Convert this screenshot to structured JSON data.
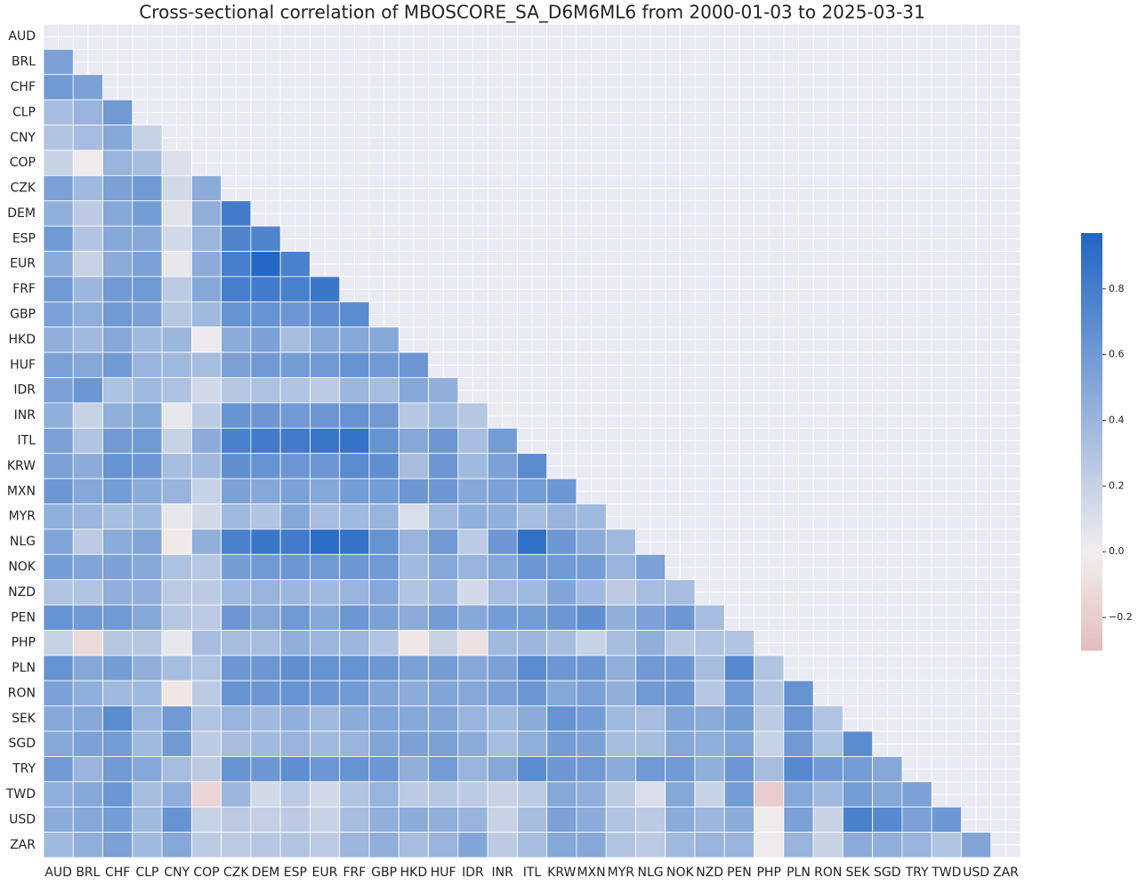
{
  "chart_data": {
    "type": "heatmap",
    "title": "Cross-sectional correlation of MBOSCORE_SA_D6M6ML6 from 2000-01-03 to 2025-03-31",
    "categories": [
      "AUD",
      "BRL",
      "CHF",
      "CLP",
      "CNY",
      "COP",
      "CZK",
      "DEM",
      "ESP",
      "EUR",
      "FRF",
      "GBP",
      "HKD",
      "HUF",
      "IDR",
      "INR",
      "ITL",
      "KRW",
      "MXN",
      "MYR",
      "NLG",
      "NOK",
      "NZD",
      "PEN",
      "PHP",
      "PLN",
      "RON",
      "SEK",
      "SGD",
      "TRY",
      "TWD",
      "USD",
      "ZAR"
    ],
    "values": [
      [],
      [
        0.55
      ],
      [
        0.6,
        0.55
      ],
      [
        0.35,
        0.42,
        0.6
      ],
      [
        0.3,
        0.35,
        0.5,
        0.2
      ],
      [
        0.2,
        0.02,
        0.42,
        0.35,
        0.1
      ],
      [
        0.55,
        0.38,
        0.55,
        0.6,
        0.15,
        0.48
      ],
      [
        0.45,
        0.25,
        0.5,
        0.58,
        0.08,
        0.45,
        0.82
      ],
      [
        0.6,
        0.3,
        0.5,
        0.5,
        0.15,
        0.4,
        0.75,
        0.75
      ],
      [
        0.48,
        0.2,
        0.48,
        0.55,
        0.05,
        0.48,
        0.8,
        0.95,
        0.78
      ],
      [
        0.6,
        0.4,
        0.6,
        0.6,
        0.25,
        0.5,
        0.8,
        0.82,
        0.78,
        0.85
      ],
      [
        0.55,
        0.45,
        0.6,
        0.55,
        0.28,
        0.38,
        0.65,
        0.65,
        0.62,
        0.68,
        0.7
      ],
      [
        0.45,
        0.38,
        0.5,
        0.38,
        0.4,
        0.03,
        0.48,
        0.55,
        0.35,
        0.5,
        0.5,
        0.5
      ],
      [
        0.55,
        0.5,
        0.6,
        0.42,
        0.38,
        0.35,
        0.55,
        0.6,
        0.58,
        0.6,
        0.65,
        0.6,
        0.62
      ],
      [
        0.55,
        0.62,
        0.32,
        0.38,
        0.32,
        0.15,
        0.28,
        0.32,
        0.3,
        0.25,
        0.4,
        0.35,
        0.5,
        0.45
      ],
      [
        0.45,
        0.2,
        0.45,
        0.5,
        0.05,
        0.25,
        0.65,
        0.62,
        0.6,
        0.62,
        0.65,
        0.6,
        0.28,
        0.38,
        0.28
      ],
      [
        0.55,
        0.3,
        0.6,
        0.6,
        0.2,
        0.48,
        0.78,
        0.82,
        0.82,
        0.85,
        0.88,
        0.65,
        0.5,
        0.62,
        0.35,
        0.58
      ],
      [
        0.55,
        0.48,
        0.65,
        0.62,
        0.35,
        0.38,
        0.68,
        0.65,
        0.62,
        0.62,
        0.7,
        0.68,
        0.35,
        0.62,
        0.38,
        0.55,
        0.7
      ],
      [
        0.62,
        0.5,
        0.58,
        0.48,
        0.42,
        0.2,
        0.55,
        0.5,
        0.55,
        0.5,
        0.58,
        0.58,
        0.62,
        0.62,
        0.5,
        0.55,
        0.58,
        0.62
      ],
      [
        0.45,
        0.4,
        0.35,
        0.38,
        0.05,
        0.15,
        0.38,
        0.3,
        0.5,
        0.35,
        0.38,
        0.42,
        0.12,
        0.38,
        0.45,
        0.45,
        0.35,
        0.42,
        0.38
      ],
      [
        0.52,
        0.25,
        0.48,
        0.52,
        -0.03,
        0.45,
        0.78,
        0.85,
        0.82,
        0.92,
        0.88,
        0.65,
        0.42,
        0.6,
        0.25,
        0.62,
        0.9,
        0.62,
        0.48,
        0.38
      ],
      [
        0.58,
        0.52,
        0.55,
        0.5,
        0.32,
        0.28,
        0.58,
        0.6,
        0.62,
        0.6,
        0.62,
        0.6,
        0.38,
        0.5,
        0.42,
        0.5,
        0.62,
        0.6,
        0.58,
        0.42,
        0.55
      ],
      [
        0.3,
        0.3,
        0.45,
        0.45,
        0.25,
        0.25,
        0.38,
        0.42,
        0.4,
        0.38,
        0.42,
        0.5,
        0.3,
        0.4,
        0.15,
        0.35,
        0.38,
        0.52,
        0.38,
        0.25,
        0.35,
        0.35
      ],
      [
        0.65,
        0.6,
        0.6,
        0.5,
        0.28,
        0.25,
        0.62,
        0.5,
        0.6,
        0.5,
        0.62,
        0.55,
        0.48,
        0.58,
        0.5,
        0.58,
        0.58,
        0.62,
        0.68,
        0.45,
        0.55,
        0.62,
        0.35
      ],
      [
        0.2,
        -0.12,
        0.28,
        0.28,
        0.05,
        0.35,
        0.35,
        0.35,
        0.45,
        0.4,
        0.4,
        0.3,
        -0.05,
        0.2,
        -0.08,
        0.38,
        0.4,
        0.35,
        0.2,
        0.35,
        0.45,
        0.28,
        0.3,
        0.3
      ],
      [
        0.65,
        0.5,
        0.58,
        0.45,
        0.35,
        0.3,
        0.62,
        0.62,
        0.68,
        0.65,
        0.65,
        0.62,
        0.55,
        0.58,
        0.5,
        0.55,
        0.7,
        0.62,
        0.62,
        0.45,
        0.6,
        0.62,
        0.35,
        0.72,
        0.3
      ],
      [
        0.55,
        0.45,
        0.38,
        0.38,
        -0.05,
        0.25,
        0.65,
        0.62,
        0.65,
        0.62,
        0.6,
        0.52,
        0.48,
        0.52,
        0.5,
        0.55,
        0.62,
        0.5,
        0.55,
        0.45,
        0.6,
        0.62,
        0.28,
        0.6,
        0.3,
        0.65
      ],
      [
        0.5,
        0.5,
        0.7,
        0.42,
        0.6,
        0.3,
        0.42,
        0.38,
        0.45,
        0.38,
        0.48,
        0.52,
        0.5,
        0.52,
        0.42,
        0.38,
        0.48,
        0.65,
        0.58,
        0.38,
        0.35,
        0.52,
        0.48,
        0.58,
        0.25,
        0.62,
        0.3
      ],
      [
        0.5,
        0.55,
        0.58,
        0.38,
        0.6,
        0.25,
        0.35,
        0.38,
        0.42,
        0.38,
        0.42,
        0.52,
        0.55,
        0.55,
        0.48,
        0.35,
        0.45,
        0.58,
        0.55,
        0.35,
        0.35,
        0.5,
        0.45,
        0.52,
        0.2,
        0.6,
        0.32,
        0.7
      ],
      [
        0.6,
        0.42,
        0.6,
        0.5,
        0.35,
        0.25,
        0.65,
        0.62,
        0.68,
        0.62,
        0.65,
        0.62,
        0.45,
        0.58,
        0.42,
        0.5,
        0.7,
        0.62,
        0.6,
        0.48,
        0.6,
        0.6,
        0.45,
        0.62,
        0.35,
        0.72,
        0.6,
        0.58,
        0.5
      ],
      [
        0.45,
        0.5,
        0.62,
        0.35,
        0.45,
        -0.15,
        0.4,
        0.15,
        0.25,
        0.15,
        0.3,
        0.42,
        0.25,
        0.28,
        0.25,
        0.2,
        0.25,
        0.5,
        0.45,
        0.25,
        0.12,
        0.5,
        0.2,
        0.58,
        -0.2,
        0.5,
        0.38,
        0.58,
        0.5,
        0.55
      ],
      [
        0.48,
        0.5,
        0.58,
        0.38,
        0.65,
        0.2,
        0.25,
        0.22,
        0.25,
        0.2,
        0.35,
        0.45,
        0.48,
        0.45,
        0.42,
        0.2,
        0.35,
        0.55,
        0.48,
        0.3,
        0.25,
        0.48,
        0.4,
        0.48,
        0.02,
        0.55,
        0.2,
        0.78,
        0.72,
        0.55,
        0.62
      ],
      [
        0.38,
        0.45,
        0.55,
        0.38,
        0.5,
        0.25,
        0.25,
        0.28,
        0.3,
        0.25,
        0.4,
        0.45,
        0.35,
        0.42,
        0.52,
        0.25,
        0.35,
        0.5,
        0.5,
        0.3,
        0.25,
        0.38,
        0.42,
        0.42,
        0.02,
        0.42,
        0.2,
        0.48,
        0.45,
        0.42,
        0.3,
        0.52
      ]
    ],
    "zlim": [
      -0.3,
      0.97
    ],
    "center": 0,
    "colormap": {
      "negative": "#c44e52",
      "center": "#f2eeee",
      "positive": "#2166c4"
    },
    "cticks": [
      {
        "value": -0.2,
        "label": "−0.2"
      },
      {
        "value": 0,
        "label": "0.0"
      },
      0.2,
      0.4,
      0.6,
      0.8
    ],
    "background": "#eaeaf2",
    "grid": true
  }
}
